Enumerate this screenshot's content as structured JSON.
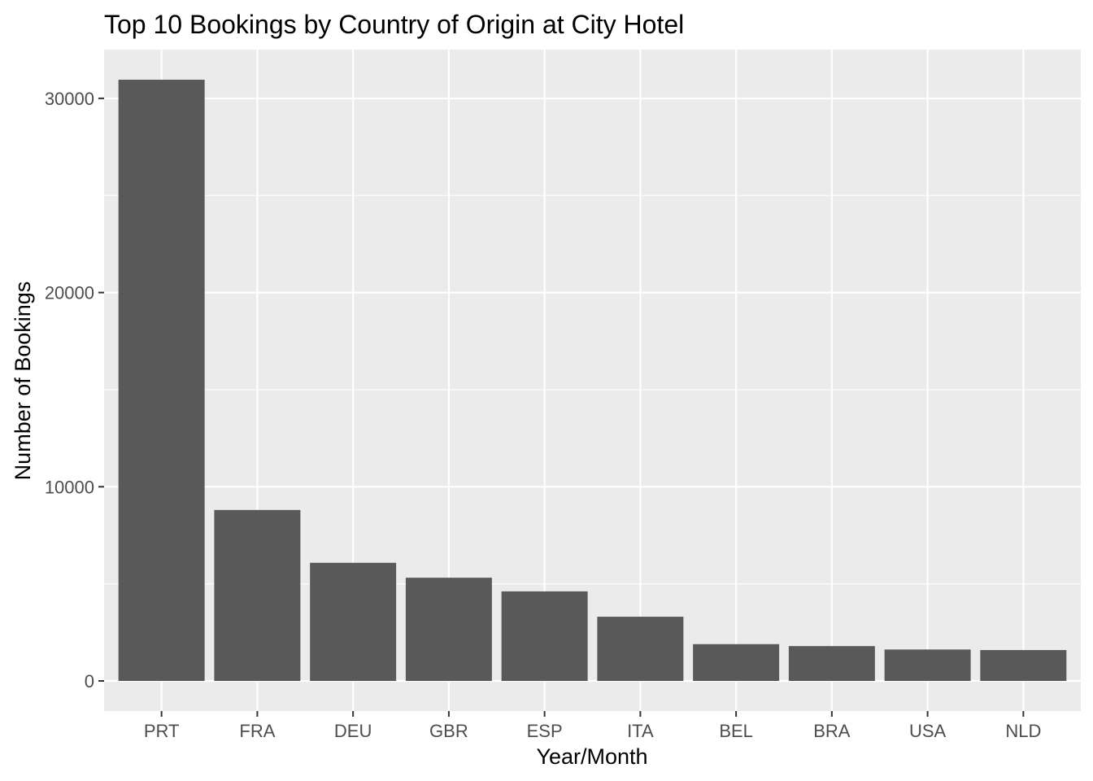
{
  "chart_data": {
    "type": "bar",
    "title": "Top 10 Bookings by Country of Origin at City Hotel",
    "xlabel": "Year/Month",
    "ylabel": "Number of Bookings",
    "categories": [
      "PRT",
      "FRA",
      "DEU",
      "GBR",
      "ESP",
      "ITA",
      "BEL",
      "BRA",
      "USA",
      "NLD"
    ],
    "values": [
      30960,
      8804,
      6084,
      5315,
      4611,
      3307,
      1894,
      1794,
      1618,
      1590
    ],
    "ylim": [
      -1550,
      32510
    ],
    "yticks": [
      0,
      10000,
      20000,
      30000
    ],
    "ytick_labels": [
      "0",
      "10000",
      "20000",
      "30000"
    ],
    "grid": true,
    "legend": "none",
    "colors": {
      "panel": "#ebebeb",
      "grid": "#ffffff",
      "bar": "#595959",
      "tick_text": "#4d4d4d",
      "tick_mark": "#333333"
    }
  }
}
